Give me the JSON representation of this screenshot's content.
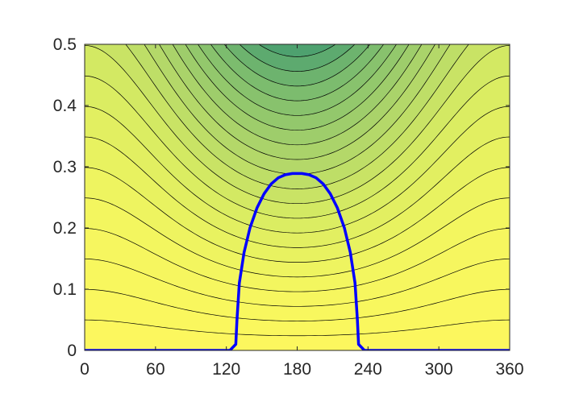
{
  "chart_data": {
    "type": "contour",
    "title": "",
    "xlabel": "",
    "ylabel": "",
    "xlim": [
      0,
      360
    ],
    "ylim": [
      0,
      0.5
    ],
    "xticks": [
      0,
      60,
      120,
      180,
      240,
      300,
      360
    ],
    "yticks": [
      0,
      0.1,
      0.2,
      0.3,
      0.4,
      0.5
    ],
    "xtick_labels": [
      "0",
      "60",
      "120",
      "180",
      "240",
      "300",
      "360"
    ],
    "ytick_labels": [
      "0",
      "0.1",
      "0.2",
      "0.3",
      "0.4",
      "0.5"
    ],
    "grid": false,
    "box": true,
    "colormap": [
      "#fcf75e",
      "#f3f65f",
      "#d9ec62",
      "#aed56a",
      "#7fbe6e",
      "#3f986f"
    ],
    "contour_line_color": "#000000",
    "contour_level_count": 21,
    "series": [
      {
        "type": "line",
        "color": "#0000ff",
        "x": [
          0,
          123,
          128,
          129,
          131,
          135,
          140,
          146,
          152,
          158,
          164,
          170,
          176,
          180,
          184,
          190,
          196,
          202,
          208,
          214,
          220,
          225,
          229,
          231,
          232,
          237,
          360
        ],
        "y": [
          0,
          0,
          0.01,
          0.05,
          0.11,
          0.16,
          0.2,
          0.233,
          0.256,
          0.272,
          0.282,
          0.287,
          0.289,
          0.289,
          0.289,
          0.287,
          0.282,
          0.272,
          0.256,
          0.233,
          0.2,
          0.16,
          0.11,
          0.05,
          0.01,
          0,
          0
        ]
      }
    ]
  }
}
